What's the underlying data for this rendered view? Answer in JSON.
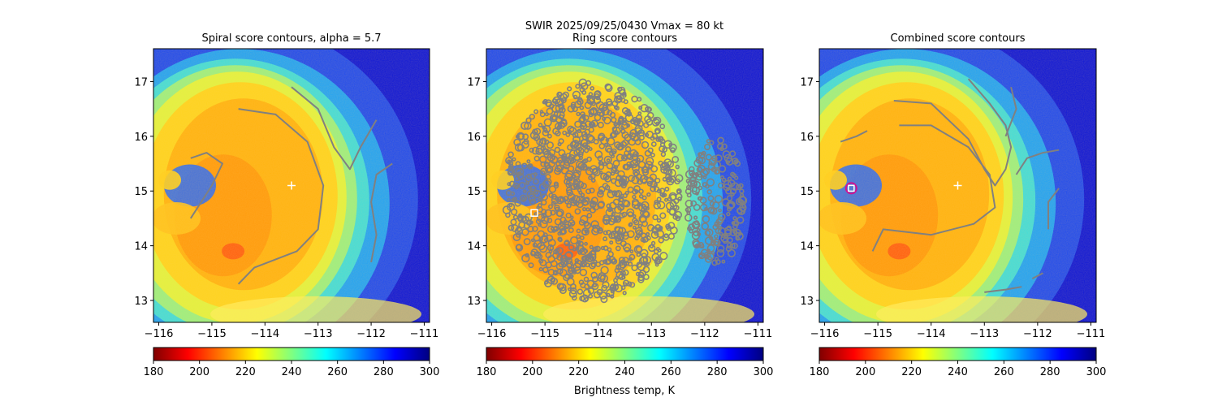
{
  "figure": {
    "suptitle_line1": "SWIR  2025/09/25/0430    Vmax = 80 kt",
    "colorbar_label": "Brightness temp, K"
  },
  "chart_data": [
    {
      "type": "heatmap",
      "title": "Spiral score contours, alpha =  5.7",
      "xlim": [
        -116.1,
        -110.9
      ],
      "ylim": [
        12.6,
        17.6
      ],
      "x_ticks": [
        "−116",
        "−115",
        "−114",
        "−113",
        "−112",
        "−111"
      ],
      "x_tick_values": [
        -116,
        -115,
        -114,
        -113,
        -112,
        -111
      ],
      "y_ticks": [
        "13",
        "14",
        "15",
        "16",
        "17"
      ],
      "y_tick_values": [
        13,
        14,
        15,
        16,
        17
      ],
      "colorbar": {
        "vmin": 180,
        "vmax": 300,
        "ticks": [
          "180",
          "200",
          "220",
          "240",
          "260",
          "280",
          "300"
        ]
      },
      "center_marker": {
        "lon": -113.5,
        "lat": 15.1,
        "symbol": "plus"
      },
      "contours": [
        [
          [
            -113.5,
            16.9
          ],
          [
            -113.0,
            16.5
          ],
          [
            -112.7,
            15.8
          ],
          [
            -112.4,
            15.4
          ],
          [
            -112.2,
            15.8
          ],
          [
            -111.9,
            16.3
          ]
        ],
        [
          [
            -114.5,
            16.5
          ],
          [
            -113.8,
            16.4
          ],
          [
            -113.2,
            15.9
          ],
          [
            -112.9,
            15.1
          ],
          [
            -113.0,
            14.3
          ],
          [
            -113.4,
            13.9
          ],
          [
            -114.2,
            13.6
          ],
          [
            -114.5,
            13.3
          ]
        ],
        [
          [
            -115.4,
            15.6
          ],
          [
            -115.1,
            15.7
          ],
          [
            -114.8,
            15.5
          ],
          [
            -115.0,
            15.1
          ],
          [
            -115.4,
            14.5
          ]
        ],
        [
          [
            -111.6,
            15.5
          ],
          [
            -111.9,
            15.3
          ],
          [
            -112.0,
            14.8
          ],
          [
            -111.9,
            14.2
          ],
          [
            -112.0,
            13.7
          ]
        ]
      ]
    },
    {
      "type": "heatmap",
      "title": "Ring score contours",
      "xlim": [
        -116.1,
        -110.9
      ],
      "ylim": [
        12.6,
        17.6
      ],
      "x_ticks": [
        "−116",
        "−115",
        "−114",
        "−113",
        "−112",
        "−111"
      ],
      "x_tick_values": [
        -116,
        -115,
        -114,
        -113,
        -112,
        -111
      ],
      "y_ticks": [
        "13",
        "14",
        "15",
        "16",
        "17"
      ],
      "y_tick_values": [
        13,
        14,
        15,
        16,
        17
      ],
      "colorbar": {
        "vmin": 180,
        "vmax": 300,
        "ticks": [
          "180",
          "200",
          "220",
          "240",
          "260",
          "280",
          "300"
        ]
      },
      "center_marker": {
        "lon": -115.2,
        "lat": 14.6,
        "symbol": "square"
      },
      "contour_regions": [
        {
          "center": [
            -114.1,
            15.0
          ],
          "radius_lon": 1.65,
          "radius_lat": 2.0
        },
        {
          "center": [
            -111.8,
            14.8
          ],
          "radius_lon": 0.55,
          "radius_lat": 1.15
        }
      ]
    },
    {
      "type": "heatmap",
      "title": "Combined score contours",
      "xlim": [
        -116.1,
        -110.9
      ],
      "ylim": [
        12.6,
        17.6
      ],
      "x_ticks": [
        "−116",
        "−115",
        "−114",
        "−113",
        "−112",
        "−111"
      ],
      "x_tick_values": [
        -116,
        -115,
        -114,
        -113,
        -112,
        -111
      ],
      "y_ticks": [
        "13",
        "14",
        "15",
        "16",
        "17"
      ],
      "y_tick_values": [
        13,
        14,
        15,
        16,
        17
      ],
      "colorbar": {
        "vmin": 180,
        "vmax": 300,
        "ticks": [
          "180",
          "200",
          "220",
          "240",
          "260",
          "280",
          "300"
        ]
      },
      "center_marker": {
        "lon": -113.5,
        "lat": 15.1,
        "symbol": "plus"
      },
      "best_point": {
        "lon": -115.5,
        "lat": 15.05
      },
      "contours": [
        [
          [
            -113.3,
            17.05
          ],
          [
            -112.9,
            16.6
          ],
          [
            -112.6,
            16.2
          ],
          [
            -112.5,
            15.8
          ],
          [
            -112.6,
            15.4
          ],
          [
            -112.8,
            15.1
          ],
          [
            -113.0,
            15.4
          ],
          [
            -113.3,
            15.95
          ],
          [
            -114.0,
            16.6
          ],
          [
            -114.7,
            16.65
          ]
        ],
        [
          [
            -114.6,
            16.2
          ],
          [
            -114.0,
            16.2
          ],
          [
            -113.3,
            15.8
          ],
          [
            -112.9,
            15.3
          ],
          [
            -112.8,
            14.7
          ],
          [
            -113.2,
            14.4
          ],
          [
            -114.0,
            14.2
          ],
          [
            -114.9,
            14.3
          ],
          [
            -115.1,
            13.9
          ]
        ],
        [
          [
            -112.4,
            15.3
          ],
          [
            -112.2,
            15.6
          ],
          [
            -111.9,
            15.7
          ],
          [
            -111.6,
            15.75
          ]
        ],
        [
          [
            -111.6,
            15.05
          ],
          [
            -111.8,
            14.8
          ],
          [
            -111.8,
            14.3
          ]
        ],
        [
          [
            -112.5,
            16.9
          ],
          [
            -112.4,
            16.5
          ],
          [
            -112.6,
            16.0
          ]
        ],
        [
          [
            -113.0,
            13.15
          ],
          [
            -112.6,
            13.2
          ],
          [
            -112.3,
            13.25
          ]
        ],
        [
          [
            -112.1,
            13.4
          ],
          [
            -111.9,
            13.5
          ]
        ],
        [
          [
            -115.7,
            15.9
          ],
          [
            -115.4,
            16.0
          ],
          [
            -115.2,
            16.1
          ]
        ]
      ]
    }
  ]
}
